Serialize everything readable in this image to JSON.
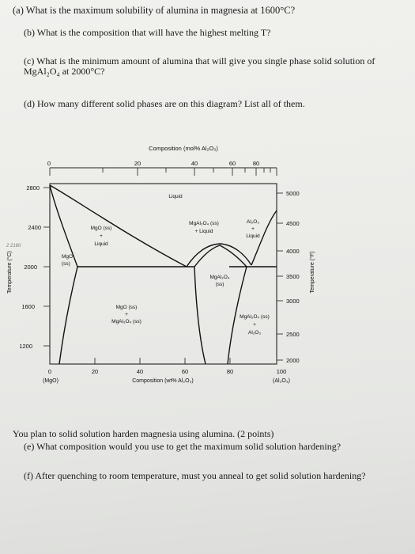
{
  "questions": {
    "a": "(a)  What is the maximum solubility of alumina in magnesia at 1600°C?",
    "b": "(b)  What is the composition that will have the highest melting T?",
    "c1": "(c)  What is the minimum amount of alumina that will give you single phase solid solution of",
    "c2": "MgAl₂O₄ at 2000°C?",
    "d": "(d)  How many different solid phases are on this diagram? List all of them.",
    "intro": "You plan to solid solution harden magnesia using alumina. (2 points)",
    "e": "(e)  What composition would you use to get the maximum solid solution hardening?",
    "f": "(f)  After quenching to room temperature, must you anneal to get solid solution hardening?"
  },
  "diagram": {
    "top_axis_title": "Composition (mol% Al₂O₃)",
    "top_ticks": [
      "0",
      "20",
      "40",
      "60",
      "80"
    ],
    "bottom_axis_title": "Composition (wt% Al₂O₃)",
    "bottom_ticks": [
      "0",
      "20",
      "40",
      "60",
      "80",
      "100"
    ],
    "left_end_label": "(MgO)",
    "right_end_label": "(Al₂O₃)",
    "left_axis_title": "Temperature (°C)",
    "right_axis_title": "Temperature (°F)",
    "left_ticks": [
      "2800",
      "2400",
      "2000",
      "1600",
      "1200"
    ],
    "right_ticks": [
      "5000",
      "4500",
      "4000",
      "3500",
      "3000",
      "2500",
      "2000"
    ],
    "handwritten_note": "2 2160",
    "regions": {
      "liquid": "Liquid",
      "mgo_ss_liquid": [
        "MgO (ss)",
        "+",
        "Liquid"
      ],
      "spinel_ss_liquid": [
        "MgAl₂O₄ (ss)",
        "+ Liquid"
      ],
      "al2o3_liquid": [
        "Al₂O₃",
        "+",
        "Liquid"
      ],
      "mgo_ss": [
        "MgO",
        "(ss)"
      ],
      "spinel_ss": [
        "MgAl₂O₄",
        "(ss)"
      ],
      "mgo_ss_spinel": [
        "MgO (ss)",
        "+",
        "MgAl₂O₄ (ss)"
      ],
      "spinel_ss_al2o3": [
        "MgAl₂O₄ (ss)",
        "+",
        "Al₂O₃"
      ]
    }
  }
}
